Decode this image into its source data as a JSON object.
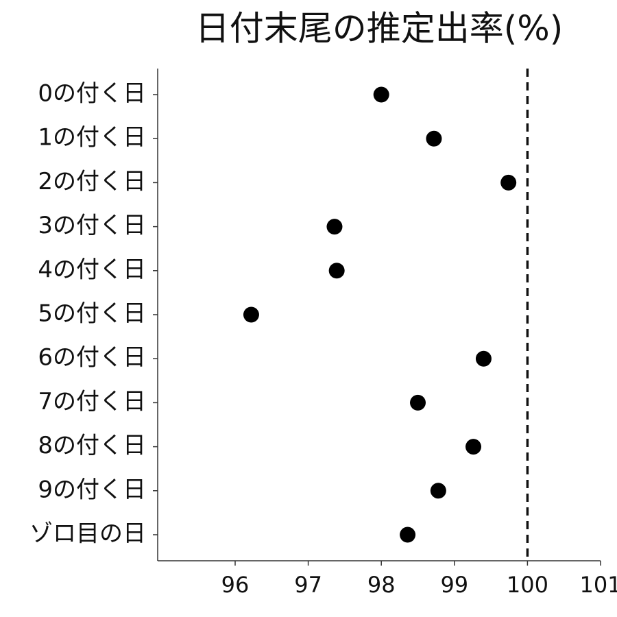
{
  "chart_data": {
    "type": "dot",
    "title": "日付末尾の推定出率(%)",
    "categories": [
      "0の付く日",
      "1の付く日",
      "2の付く日",
      "3の付く日",
      "4の付く日",
      "5の付く日",
      "6の付く日",
      "7の付く日",
      "8の付く日",
      "9の付く日",
      "ゾロ目の日"
    ],
    "values": [
      98.0,
      98.72,
      99.74,
      97.36,
      97.39,
      96.22,
      99.4,
      98.5,
      99.26,
      98.78,
      98.36
    ],
    "color": "#000000",
    "xlim": [
      94.94,
      101
    ],
    "xticks": [
      96,
      97,
      98,
      99,
      100,
      101
    ],
    "reference_line": 100
  }
}
